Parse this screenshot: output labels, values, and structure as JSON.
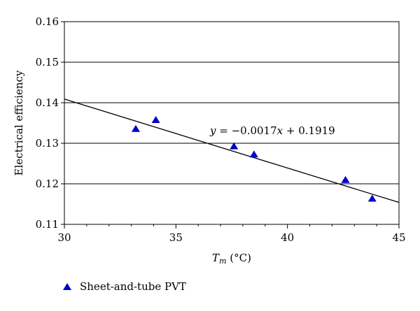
{
  "chart_data": {
    "type": "scatter",
    "title": "",
    "xlabel": {
      "symbol": "T",
      "subscript": "m",
      "unit": " (°C)"
    },
    "ylabel": "Electrical efficiency",
    "xlim": [
      30,
      45
    ],
    "ylim": [
      0.11,
      0.16
    ],
    "x_ticks": [
      "30",
      "35",
      "40",
      "45"
    ],
    "y_ticks": [
      "0.11",
      "0.12",
      "0.13",
      "0.14",
      "0.15",
      "0.16"
    ],
    "grid": "horizontal",
    "legend_position": "bottom-left",
    "series": [
      {
        "name": "Sheet-and-tube PVT",
        "marker": "triangle",
        "color": "#0000cc",
        "points": [
          {
            "x": 33.2,
            "y": 0.1335
          },
          {
            "x": 34.1,
            "y": 0.1357
          },
          {
            "x": 37.6,
            "y": 0.1292
          },
          {
            "x": 38.5,
            "y": 0.1272
          },
          {
            "x": 42.6,
            "y": 0.1209
          },
          {
            "x": 43.8,
            "y": 0.1163
          }
        ]
      }
    ],
    "trendline": {
      "slope": -0.0017,
      "intercept": 0.1919,
      "color": "#000000",
      "equation": {
        "y": "y",
        "eq": " = −0.0017",
        "x": "x",
        "rest": " + 0.1919"
      }
    }
  }
}
